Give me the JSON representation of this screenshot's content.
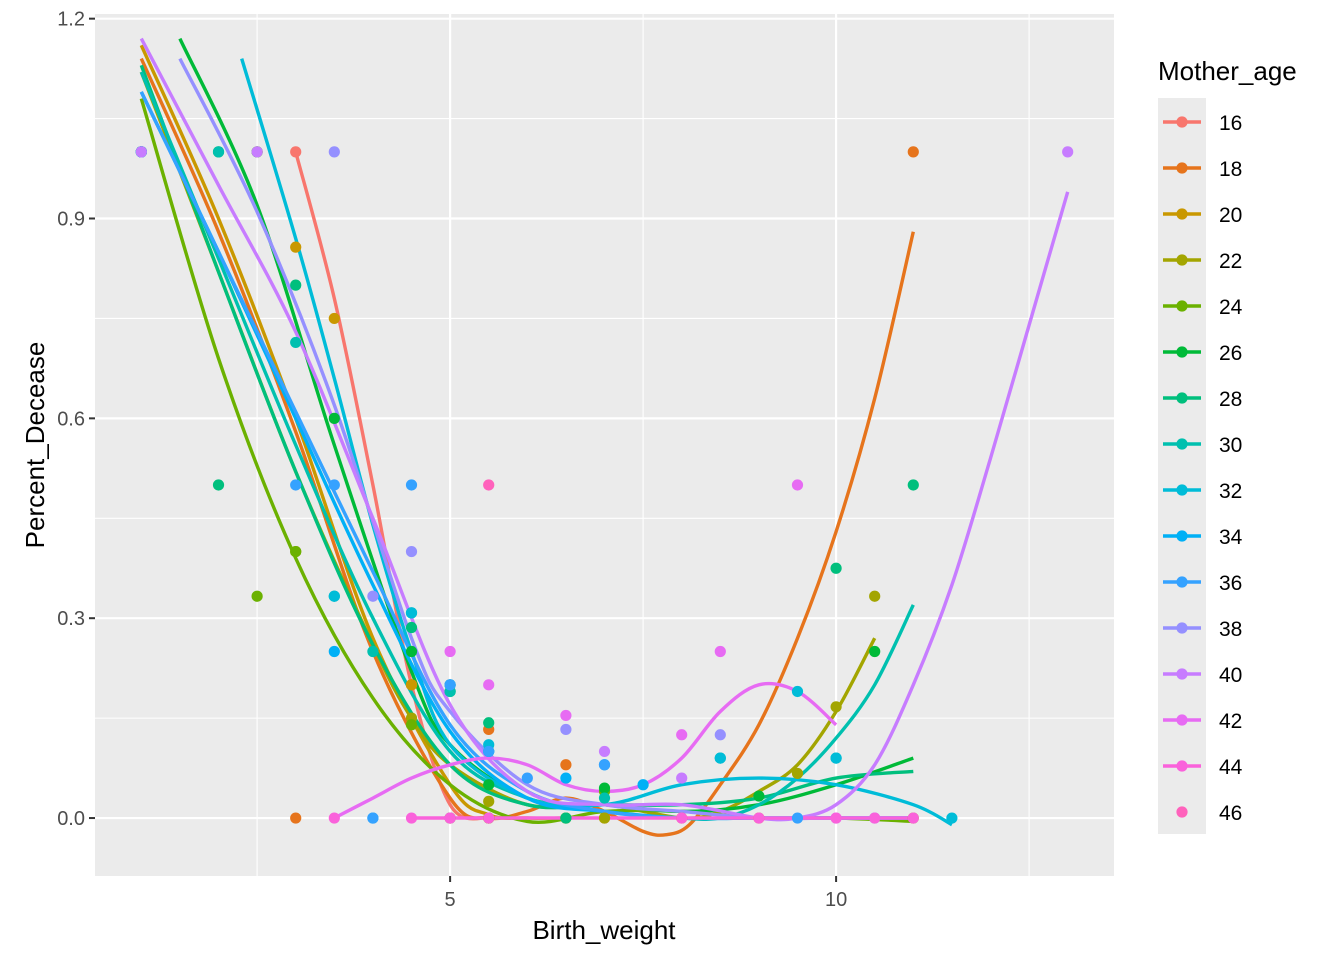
{
  "chart_data": {
    "type": "scatter",
    "xlabel": "Birth_weight",
    "ylabel": "Percent_Decease",
    "xlim": [
      0.4,
      13.6
    ],
    "ylim": [
      -0.087,
      1.207
    ],
    "x_ticks": [
      5,
      10
    ],
    "x_minor": [
      2.5,
      7.5,
      12.5
    ],
    "y_ticks": [
      0.0,
      0.3,
      0.6,
      0.9,
      1.2
    ],
    "y_tick_labels": [
      "0.0",
      "0.3",
      "0.6",
      "0.9",
      "1.2"
    ],
    "grid": true,
    "legend": {
      "title": "Mother_age",
      "placement": "right"
    },
    "series": [
      {
        "name": "16",
        "color": "#F8766D",
        "points": [
          [
            3,
            1.0
          ],
          [
            4.5,
            0.2
          ],
          [
            5,
            0.0
          ],
          [
            5.5,
            0.0
          ]
        ],
        "curve": [
          [
            3,
            1.0
          ],
          [
            3.5,
            0.78
          ],
          [
            4,
            0.5
          ],
          [
            4.5,
            0.2
          ],
          [
            5,
            0.02
          ],
          [
            5.5,
            0.0
          ]
        ]
      },
      {
        "name": "18",
        "color": "#E6741C",
        "points": [
          [
            1,
            1.0
          ],
          [
            3,
            0.0
          ],
          [
            4.5,
            0.2
          ],
          [
            5.5,
            0.133
          ],
          [
            6.5,
            0.08
          ],
          [
            7,
            0.0
          ],
          [
            8,
            0.0
          ],
          [
            9,
            0.0
          ],
          [
            11,
            1.0
          ]
        ],
        "curve": [
          [
            1,
            1.14
          ],
          [
            2,
            0.88
          ],
          [
            3,
            0.58
          ],
          [
            4,
            0.25
          ],
          [
            5,
            0.03
          ],
          [
            5.5,
            0.0
          ],
          [
            6,
            0.01
          ],
          [
            6.5,
            0.03
          ],
          [
            7,
            0.01
          ],
          [
            7.5,
            -0.02
          ],
          [
            7.8,
            -0.025
          ],
          [
            8.1,
            -0.01
          ],
          [
            8.5,
            0.05
          ],
          [
            9,
            0.14
          ],
          [
            9.5,
            0.27
          ],
          [
            10,
            0.43
          ],
          [
            10.5,
            0.63
          ],
          [
            11,
            0.88
          ]
        ]
      },
      {
        "name": "20",
        "color": "#C99800",
        "points": [
          [
            1,
            1.0
          ],
          [
            2.5,
            1.0
          ],
          [
            3,
            0.857
          ],
          [
            3.5,
            0.75
          ],
          [
            4.5,
            0.2
          ],
          [
            5,
            0.0
          ],
          [
            5.5,
            0.0
          ],
          [
            6.5,
            0.0
          ]
        ],
        "curve": [
          [
            1,
            1.16
          ],
          [
            2,
            0.9
          ],
          [
            3,
            0.6
          ],
          [
            4,
            0.27
          ],
          [
            5,
            0.05
          ],
          [
            5.5,
            0.005
          ],
          [
            6,
            0.0
          ],
          [
            6.5,
            0.0
          ]
        ]
      },
      {
        "name": "22",
        "color": "#A3A500",
        "points": [
          [
            1,
            1.0
          ],
          [
            3,
            0.4
          ],
          [
            4.5,
            0.15
          ],
          [
            5.5,
            0.025
          ],
          [
            7,
            0.0
          ],
          [
            9.5,
            0.067
          ],
          [
            10,
            0.167
          ],
          [
            10.5,
            0.333
          ],
          [
            11,
            0.0
          ]
        ],
        "curve": [
          [
            1,
            1.12
          ],
          [
            2,
            0.82
          ],
          [
            3,
            0.52
          ],
          [
            4,
            0.26
          ],
          [
            4.5,
            0.15
          ],
          [
            5,
            0.08
          ],
          [
            6,
            0.02
          ],
          [
            7,
            0.02
          ],
          [
            8,
            0.0
          ],
          [
            8.5,
            0.01
          ],
          [
            9,
            0.04
          ],
          [
            9.5,
            0.08
          ],
          [
            10,
            0.16
          ],
          [
            10.5,
            0.27
          ]
        ]
      },
      {
        "name": "24",
        "color": "#6BB100",
        "points": [
          [
            1,
            1.0
          ],
          [
            2.5,
            0.333
          ],
          [
            3,
            0.4
          ],
          [
            4.5,
            0.14
          ],
          [
            5,
            0.0
          ],
          [
            5.5,
            0.0
          ],
          [
            6.5,
            0.0
          ],
          [
            7,
            0.04
          ]
        ],
        "curve": [
          [
            1,
            1.08
          ],
          [
            2,
            0.69
          ],
          [
            3,
            0.39
          ],
          [
            4,
            0.18
          ],
          [
            5,
            0.05
          ],
          [
            6,
            -0.005
          ],
          [
            7,
            0.01
          ],
          [
            8,
            0.01
          ],
          [
            9,
            0.0
          ],
          [
            10,
            0.0
          ],
          [
            11,
            -0.005
          ]
        ]
      },
      {
        "name": "26",
        "color": "#00BA38",
        "points": [
          [
            1,
            1.0
          ],
          [
            2,
            1.0
          ],
          [
            2.5,
            1.0
          ],
          [
            3.5,
            0.6
          ],
          [
            4.5,
            0.25
          ],
          [
            5,
            0.19
          ],
          [
            5.5,
            0.05
          ],
          [
            7,
            0.045
          ],
          [
            9,
            0.033
          ],
          [
            10.5,
            0.25
          ]
        ],
        "curve": [
          [
            1.5,
            1.17
          ],
          [
            2.5,
            0.92
          ],
          [
            3.5,
            0.56
          ],
          [
            4.5,
            0.22
          ],
          [
            5,
            0.11
          ],
          [
            6,
            0.03
          ],
          [
            7,
            0.02
          ],
          [
            8,
            0.01
          ],
          [
            9,
            0.02
          ],
          [
            10,
            0.05
          ],
          [
            11,
            0.09
          ]
        ]
      },
      {
        "name": "28",
        "color": "#00BF7D",
        "points": [
          [
            1,
            1.0
          ],
          [
            2,
            0.5
          ],
          [
            3,
            0.8
          ],
          [
            4.5,
            0.286
          ],
          [
            5,
            0.2
          ],
          [
            5.5,
            0.143
          ],
          [
            6.5,
            0.0
          ],
          [
            10,
            0.375
          ],
          [
            11,
            0.5
          ]
        ],
        "curve": [
          [
            1,
            1.13
          ],
          [
            2,
            0.82
          ],
          [
            3,
            0.52
          ],
          [
            4,
            0.26
          ],
          [
            5,
            0.08
          ],
          [
            6,
            0.02
          ],
          [
            7,
            0.02
          ],
          [
            8,
            0.02
          ],
          [
            9,
            0.03
          ],
          [
            10,
            0.06
          ],
          [
            11,
            0.07
          ]
        ]
      },
      {
        "name": "30",
        "color": "#00C0AF",
        "points": [
          [
            1,
            1.0
          ],
          [
            2,
            1.0
          ],
          [
            3,
            0.714
          ],
          [
            3.5,
            0.333
          ],
          [
            4,
            0.25
          ],
          [
            4.5,
            0.308
          ],
          [
            5,
            0.19
          ],
          [
            5.5,
            0.1
          ],
          [
            7,
            0.03
          ],
          [
            8.5,
            0.09
          ],
          [
            10,
            0.09
          ]
        ],
        "curve": [
          [
            1,
            1.12
          ],
          [
            2,
            0.84
          ],
          [
            3,
            0.56
          ],
          [
            4,
            0.3
          ],
          [
            5,
            0.1
          ],
          [
            6,
            0.03
          ],
          [
            7,
            0.01
          ],
          [
            8,
            0.0
          ],
          [
            8.5,
            0.0
          ],
          [
            9,
            0.02
          ],
          [
            9.5,
            0.06
          ],
          [
            10,
            0.12
          ],
          [
            10.5,
            0.2
          ],
          [
            11,
            0.32
          ]
        ]
      },
      {
        "name": "32",
        "color": "#00BCD8",
        "points": [
          [
            1,
            1.0
          ],
          [
            3.5,
            0.333
          ],
          [
            4.5,
            0.308
          ],
          [
            5.5,
            0.11
          ],
          [
            8.5,
            0.09
          ],
          [
            9.5,
            0.19
          ],
          [
            10,
            0.09
          ],
          [
            11.5,
            0.0
          ]
        ],
        "curve": [
          [
            2.3,
            1.14
          ],
          [
            3,
            0.87
          ],
          [
            3.5,
            0.66
          ],
          [
            4,
            0.44
          ],
          [
            4.5,
            0.25
          ],
          [
            5,
            0.11
          ],
          [
            6,
            0.03
          ],
          [
            7,
            0.02
          ],
          [
            8,
            0.05
          ],
          [
            9,
            0.06
          ],
          [
            10,
            0.05
          ],
          [
            11,
            0.02
          ],
          [
            11.5,
            -0.01
          ]
        ]
      },
      {
        "name": "34",
        "color": "#00B0F6",
        "points": [
          [
            1,
            1.0
          ],
          [
            3.5,
            0.25
          ],
          [
            4,
            0.0
          ],
          [
            5,
            0.2
          ],
          [
            5.5,
            0.1
          ],
          [
            6.5,
            0.06
          ],
          [
            7,
            0.08
          ],
          [
            7.5,
            0.05
          ]
        ],
        "curve": [
          [
            1,
            1.09
          ],
          [
            2,
            0.85
          ],
          [
            3,
            0.6
          ],
          [
            4,
            0.35
          ],
          [
            5,
            0.13
          ],
          [
            6,
            0.03
          ],
          [
            7,
            0.01
          ],
          [
            8,
            0.0
          ],
          [
            9,
            0.0
          ],
          [
            10,
            0.0
          ],
          [
            11,
            0.0
          ]
        ]
      },
      {
        "name": "36",
        "color": "#35A2FF",
        "points": [
          [
            1,
            1.0
          ],
          [
            3,
            0.5
          ],
          [
            3.5,
            0.5
          ],
          [
            4,
            0.0
          ],
          [
            4.5,
            0.5
          ],
          [
            5,
            0.2
          ],
          [
            5.5,
            0.1
          ],
          [
            6,
            0.06
          ],
          [
            7,
            0.08
          ],
          [
            9.5,
            0.0
          ]
        ],
        "curve": [
          [
            1,
            1.09
          ],
          [
            2,
            0.85
          ],
          [
            3,
            0.61
          ],
          [
            4,
            0.37
          ],
          [
            5,
            0.14
          ],
          [
            6,
            0.04
          ],
          [
            7,
            0.01
          ],
          [
            8,
            0.0
          ],
          [
            9,
            0.0
          ],
          [
            10,
            0.0
          ],
          [
            11,
            0.0
          ]
        ]
      },
      {
        "name": "38",
        "color": "#9590FF",
        "points": [
          [
            3.5,
            1.0
          ],
          [
            4,
            0.333
          ],
          [
            4.5,
            0.4
          ],
          [
            6.5,
            0.133
          ],
          [
            8.5,
            0.125
          ],
          [
            10.5,
            0.0
          ]
        ],
        "curve": [
          [
            1.5,
            1.14
          ],
          [
            2.5,
            0.91
          ],
          [
            3.5,
            0.62
          ],
          [
            4.5,
            0.27
          ],
          [
            5,
            0.16
          ],
          [
            6,
            0.05
          ],
          [
            7,
            0.02
          ],
          [
            8,
            0.01
          ],
          [
            9,
            0.0
          ],
          [
            10,
            0.0
          ],
          [
            11,
            0.0
          ]
        ]
      },
      {
        "name": "40",
        "color": "#C77CFF",
        "points": [
          [
            1,
            1.0
          ],
          [
            2.5,
            1.0
          ],
          [
            5,
            0.0
          ],
          [
            7,
            0.1
          ],
          [
            8,
            0.06
          ],
          [
            10,
            0.0
          ],
          [
            13,
            1.0
          ]
        ],
        "curve": [
          [
            1,
            1.17
          ],
          [
            2,
            0.95
          ],
          [
            3,
            0.73
          ],
          [
            4,
            0.45
          ],
          [
            5,
            0.17
          ],
          [
            6,
            0.04
          ],
          [
            7,
            0.02
          ],
          [
            8,
            0.02
          ],
          [
            9,
            0.0
          ],
          [
            9.5,
            0.0
          ],
          [
            10,
            0.02
          ],
          [
            10.5,
            0.08
          ],
          [
            11,
            0.2
          ],
          [
            11.5,
            0.35
          ],
          [
            12,
            0.54
          ],
          [
            12.5,
            0.74
          ],
          [
            13,
            0.94
          ]
        ]
      },
      {
        "name": "42",
        "color": "#E76BF3",
        "points": [
          [
            5,
            0.25
          ],
          [
            5.5,
            0.2
          ],
          [
            6.5,
            0.154
          ],
          [
            8,
            0.125
          ],
          [
            8.5,
            0.25
          ],
          [
            9.5,
            0.5
          ]
        ],
        "curve": [
          [
            3.5,
            0.0
          ],
          [
            4,
            0.03
          ],
          [
            4.5,
            0.06
          ],
          [
            5,
            0.08
          ],
          [
            5.5,
            0.09
          ],
          [
            6,
            0.08
          ],
          [
            6.5,
            0.05
          ],
          [
            7,
            0.04
          ],
          [
            7.5,
            0.05
          ],
          [
            8,
            0.09
          ],
          [
            8.5,
            0.16
          ],
          [
            9,
            0.2
          ],
          [
            9.5,
            0.19
          ],
          [
            10,
            0.14
          ]
        ]
      },
      {
        "name": "44",
        "color": "#FA62DB",
        "points": [
          [
            3.5,
            0.0
          ],
          [
            4.5,
            0.0
          ],
          [
            5,
            0.0
          ],
          [
            5.5,
            0.0
          ],
          [
            8,
            0.0
          ],
          [
            9,
            0.0
          ],
          [
            10,
            0.0
          ],
          [
            10.5,
            0.0
          ],
          [
            11,
            0.0
          ]
        ],
        "curve": [
          [
            4.5,
            0.0
          ],
          [
            11,
            0.0
          ]
        ]
      },
      {
        "name": "46",
        "color": "#FF62BC",
        "points": [
          [
            5.5,
            0.5
          ]
        ],
        "curve": []
      }
    ]
  }
}
